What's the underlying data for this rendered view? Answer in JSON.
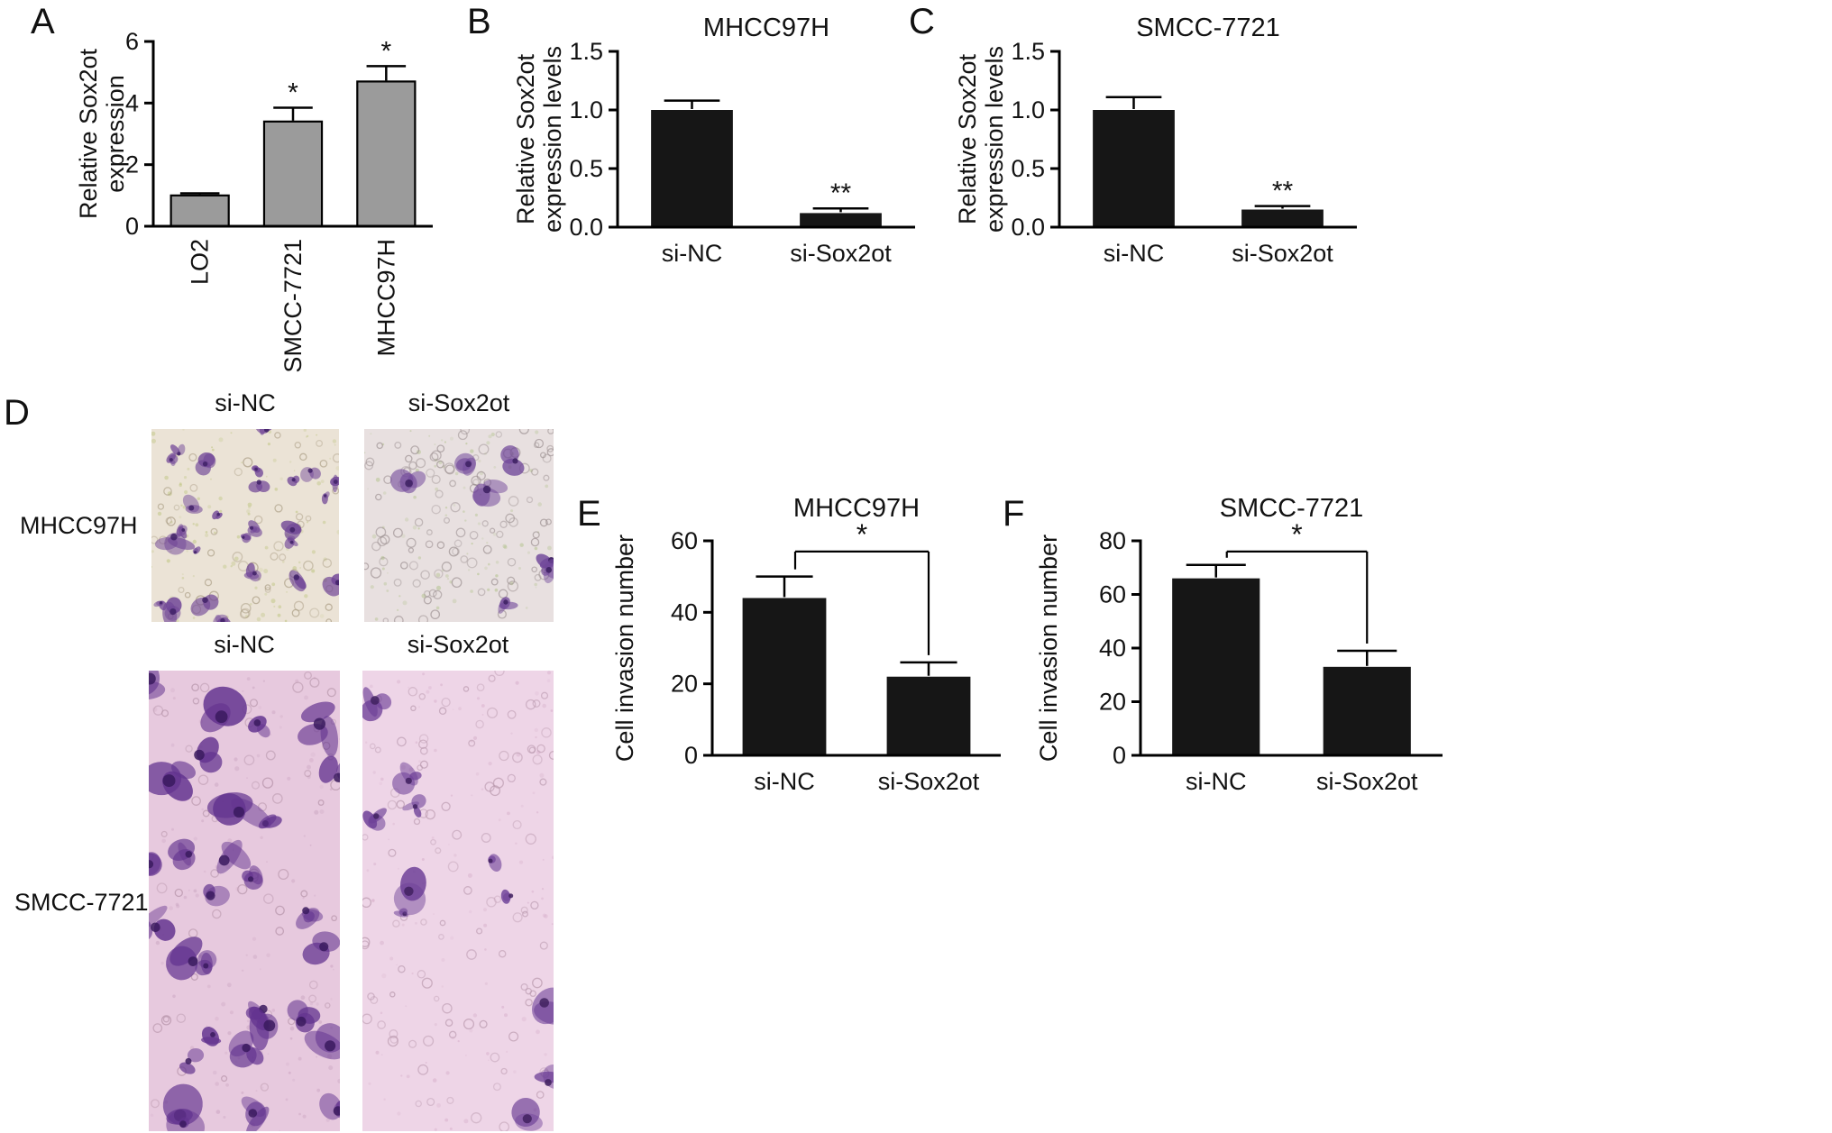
{
  "panels": {
    "A": {
      "label": "A"
    },
    "B": {
      "label": "B"
    },
    "C": {
      "label": "C"
    },
    "D": {
      "label": "D"
    },
    "E": {
      "label": "E"
    },
    "F": {
      "label": "F"
    }
  },
  "chart_data": [
    {
      "id": "A",
      "type": "bar",
      "title": "",
      "ylabel": "Relative Sox2ot\nexpression",
      "categories": [
        "LO2",
        "SMCC-7721",
        "MHCC97H"
      ],
      "values": [
        1.0,
        3.4,
        4.7
      ],
      "errors": [
        0.07,
        0.45,
        0.5
      ],
      "significance": [
        "",
        "*",
        "*"
      ],
      "ylim": [
        0,
        6
      ],
      "yticks": [
        0,
        2,
        4,
        6
      ],
      "ytick_decimals": 0,
      "bar_color": "#9b9b9b",
      "bar_stroke": "#000000",
      "xtick_rotation": 90,
      "legend": "none",
      "grid": false
    },
    {
      "id": "B",
      "type": "bar",
      "title": "MHCC97H",
      "ylabel": "Relative Sox2ot\nexpression levels",
      "categories": [
        "si-NC",
        "si-Sox2ot"
      ],
      "values": [
        1.0,
        0.12
      ],
      "errors": [
        0.08,
        0.04
      ],
      "significance": [
        "",
        "**"
      ],
      "ylim": [
        0,
        1.5
      ],
      "yticks": [
        0,
        0.5,
        1.0,
        1.5
      ],
      "ytick_decimals": 1,
      "bar_color": "#161616",
      "xtick_rotation": 0,
      "legend": "none",
      "grid": false
    },
    {
      "id": "C",
      "type": "bar",
      "title": "SMCC-7721",
      "ylabel": "Relative Sox2ot\nexpression levels",
      "categories": [
        "si-NC",
        "si-Sox2ot"
      ],
      "values": [
        1.0,
        0.15
      ],
      "errors": [
        0.11,
        0.03
      ],
      "significance": [
        "",
        "**"
      ],
      "ylim": [
        0,
        1.5
      ],
      "yticks": [
        0,
        0.5,
        1.0,
        1.5
      ],
      "ytick_decimals": 1,
      "bar_color": "#161616",
      "xtick_rotation": 0,
      "legend": "none",
      "grid": false
    },
    {
      "id": "E",
      "type": "bar",
      "title": "MHCC97H",
      "ylabel": "Cell invasion number",
      "categories": [
        "si-NC",
        "si-Sox2ot"
      ],
      "values": [
        44,
        22
      ],
      "errors": [
        6,
        4
      ],
      "significance": [
        "",
        ""
      ],
      "bracket": {
        "y": 57,
        "sig": "*"
      },
      "ylim": [
        0,
        60
      ],
      "yticks": [
        0,
        20,
        40,
        60
      ],
      "ytick_decimals": 0,
      "bar_color": "#161616",
      "xtick_rotation": 0,
      "legend": "none",
      "grid": false
    },
    {
      "id": "F",
      "type": "bar",
      "title": "SMCC-7721",
      "ylabel": "Cell invasion number",
      "categories": [
        "si-NC",
        "si-Sox2ot"
      ],
      "values": [
        66,
        33
      ],
      "errors": [
        5,
        6
      ],
      "significance": [
        "",
        ""
      ],
      "bracket": {
        "y": 76,
        "sig": "*"
      },
      "ylim": [
        0,
        80
      ],
      "yticks": [
        0,
        20,
        40,
        60,
        80
      ],
      "ytick_decimals": 0,
      "bar_color": "#161616",
      "xtick_rotation": 0,
      "legend": "none",
      "grid": false
    }
  ],
  "panel_d": {
    "rows": [
      {
        "row_label": "MHCC97H",
        "images": [
          {
            "col_label": "si-NC",
            "style": {
              "bg": "#ebe3d6",
              "speckles": 120,
              "speckle_color": "#b9c277",
              "pores": 55,
              "pore_color": "#a79a80",
              "cells": 26,
              "cell_color": "#6f4496",
              "nucleus_color": "#3f2166",
              "cell_scale": 1.0,
              "seed": 7
            }
          },
          {
            "col_label": "si-Sox2ot",
            "style": {
              "bg": "#e8e0e0",
              "speckles": 100,
              "speckle_color": "#a9bd7e",
              "pores": 110,
              "pore_color": "#9b8f90",
              "cells": 7,
              "cell_color": "#71489a",
              "nucleus_color": "#3c2060",
              "cell_scale": 1.1,
              "seed": 21
            }
          }
        ]
      },
      {
        "row_label": "SMCC-7721",
        "images": [
          {
            "col_label": "si-NC",
            "style": {
              "bg": "#e7c9de",
              "speckles": 140,
              "speckle_color": "#c9a2bf",
              "pores": 60,
              "pore_color": "#b391a6",
              "cells": 30,
              "cell_color": "#63338f",
              "nucleus_color": "#3a1a5e",
              "cell_scale": 1.8,
              "seed": 33
            }
          },
          {
            "col_label": "si-Sox2ot",
            "style": {
              "bg": "#eed5e7",
              "speckles": 130,
              "speckle_color": "#d4abc7",
              "pores": 110,
              "pore_color": "#b796ab",
              "cells": 11,
              "cell_color": "#6d3f97",
              "nucleus_color": "#41215f",
              "cell_scale": 1.4,
              "seed": 55
            }
          }
        ]
      }
    ]
  }
}
